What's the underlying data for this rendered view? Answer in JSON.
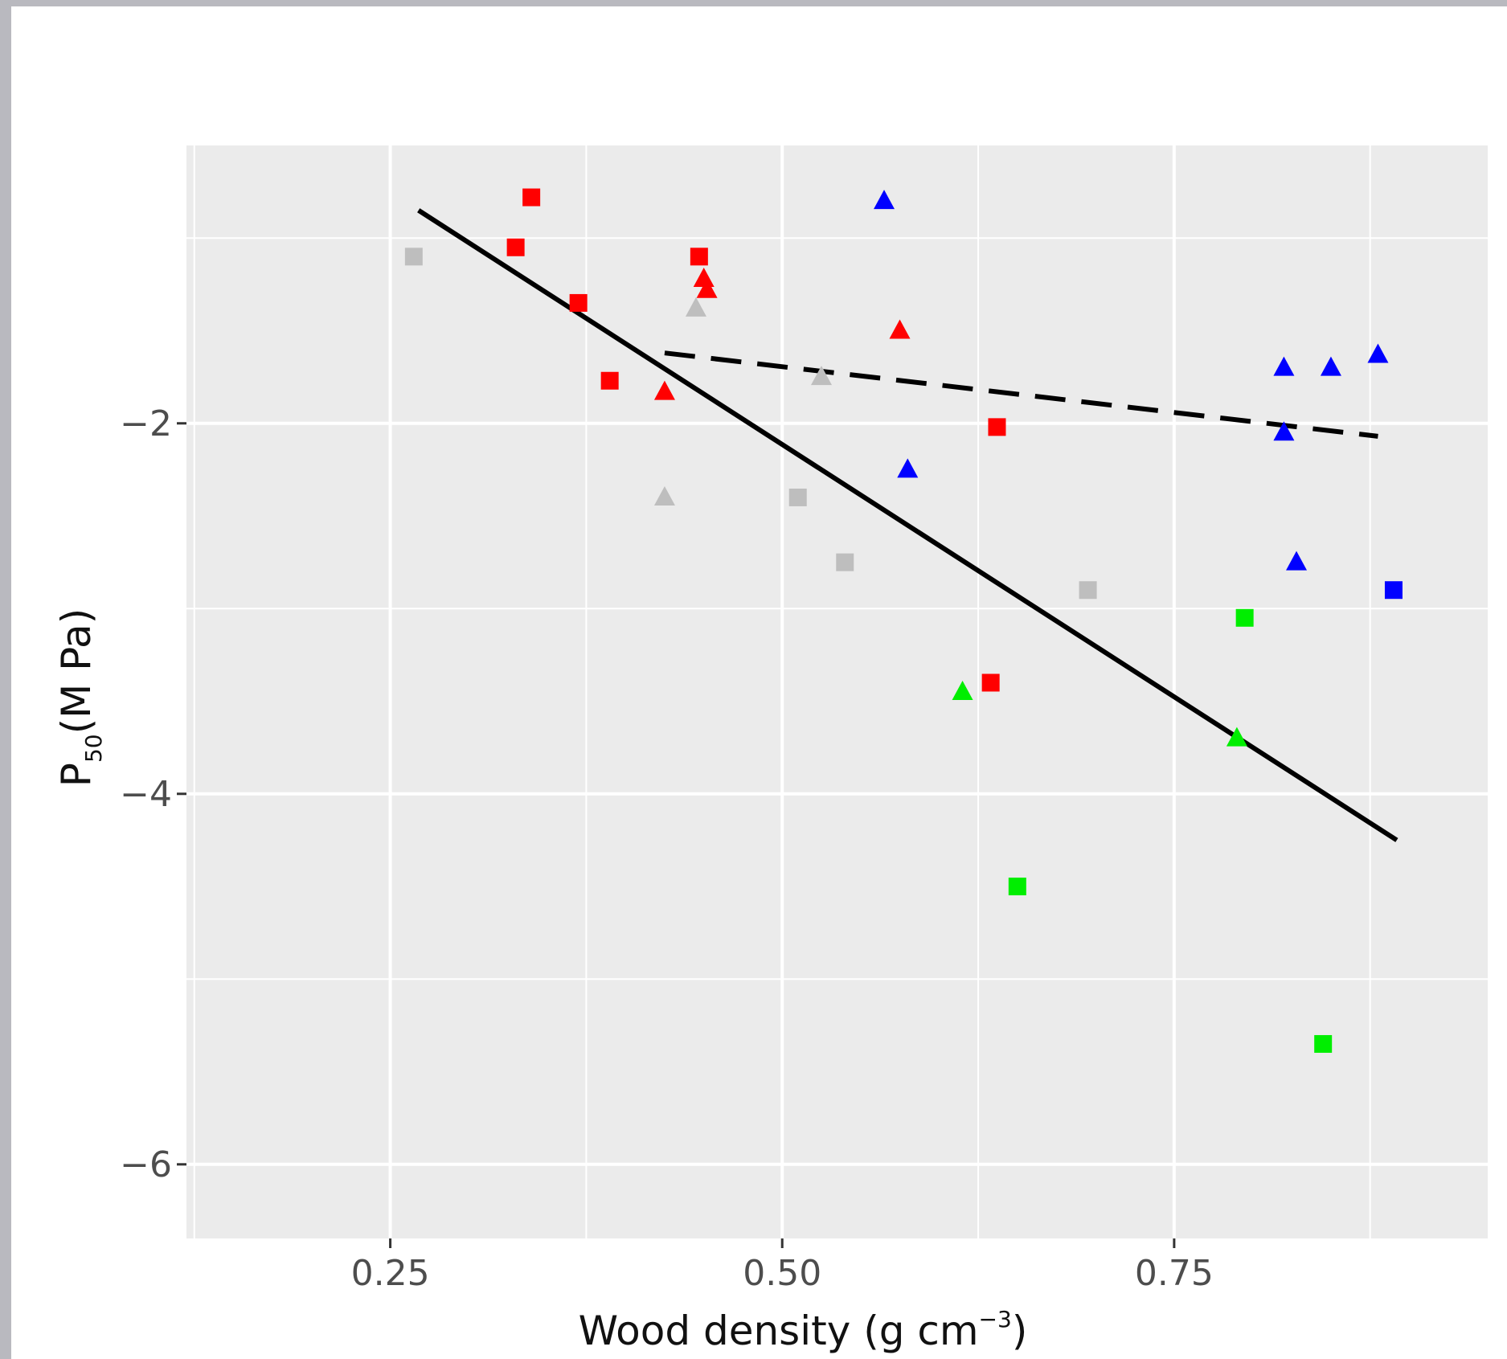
{
  "chart_data": {
    "type": "scatter",
    "title": "",
    "xlabel": {
      "main": "Wood density (g cm",
      "sup": "−3",
      "close": ")"
    },
    "ylabel": {
      "main": "P",
      "sub": "50",
      "rest": "(M Pa)"
    },
    "xlim": [
      0.12,
      0.95
    ],
    "ylim": [
      -6.4,
      -0.5
    ],
    "x_ticks": [
      0.25,
      0.5,
      0.75
    ],
    "x_tick_labels": [
      "0.25",
      "0.50",
      "0.75"
    ],
    "y_ticks": [
      -2,
      -4,
      -6
    ],
    "y_tick_labels": [
      "−2",
      "−4",
      "−6"
    ],
    "grid": true,
    "colors": {
      "red": "#ff0000",
      "blue": "#0000ff",
      "green": "#00ee00",
      "gray": "#bebebe",
      "panel": "#ebebeb",
      "grid": "#ffffff"
    },
    "points": [
      {
        "x": 0.265,
        "y": -1.1,
        "shape": "square",
        "color": "gray"
      },
      {
        "x": 0.34,
        "y": -0.78,
        "shape": "square",
        "color": "red"
      },
      {
        "x": 0.33,
        "y": -1.05,
        "shape": "square",
        "color": "red"
      },
      {
        "x": 0.37,
        "y": -1.35,
        "shape": "square",
        "color": "red"
      },
      {
        "x": 0.39,
        "y": -1.77,
        "shape": "square",
        "color": "red"
      },
      {
        "x": 0.447,
        "y": -1.1,
        "shape": "square",
        "color": "red"
      },
      {
        "x": 0.45,
        "y": -1.22,
        "shape": "triangle",
        "color": "red"
      },
      {
        "x": 0.452,
        "y": -1.28,
        "shape": "triangle",
        "color": "red"
      },
      {
        "x": 0.445,
        "y": -1.38,
        "shape": "triangle",
        "color": "gray"
      },
      {
        "x": 0.425,
        "y": -1.83,
        "shape": "triangle",
        "color": "red"
      },
      {
        "x": 0.425,
        "y": -2.4,
        "shape": "triangle",
        "color": "gray"
      },
      {
        "x": 0.575,
        "y": -1.5,
        "shape": "triangle",
        "color": "red"
      },
      {
        "x": 0.525,
        "y": -1.75,
        "shape": "triangle",
        "color": "gray"
      },
      {
        "x": 0.565,
        "y": -0.8,
        "shape": "triangle",
        "color": "blue"
      },
      {
        "x": 0.58,
        "y": -2.25,
        "shape": "triangle",
        "color": "blue"
      },
      {
        "x": 0.51,
        "y": -2.4,
        "shape": "square",
        "color": "gray"
      },
      {
        "x": 0.54,
        "y": -2.75,
        "shape": "square",
        "color": "gray"
      },
      {
        "x": 0.637,
        "y": -2.02,
        "shape": "square",
        "color": "red"
      },
      {
        "x": 0.633,
        "y": -3.4,
        "shape": "square",
        "color": "red"
      },
      {
        "x": 0.615,
        "y": -3.45,
        "shape": "triangle",
        "color": "green"
      },
      {
        "x": 0.65,
        "y": -4.5,
        "shape": "square",
        "color": "green"
      },
      {
        "x": 0.695,
        "y": -2.9,
        "shape": "square",
        "color": "gray"
      },
      {
        "x": 0.795,
        "y": -3.05,
        "shape": "square",
        "color": "green"
      },
      {
        "x": 0.79,
        "y": -3.7,
        "shape": "triangle",
        "color": "green"
      },
      {
        "x": 0.845,
        "y": -5.35,
        "shape": "square",
        "color": "green"
      },
      {
        "x": 0.82,
        "y": -1.7,
        "shape": "triangle",
        "color": "blue"
      },
      {
        "x": 0.85,
        "y": -1.7,
        "shape": "triangle",
        "color": "blue"
      },
      {
        "x": 0.88,
        "y": -1.63,
        "shape": "triangle",
        "color": "blue"
      },
      {
        "x": 0.82,
        "y": -2.05,
        "shape": "triangle",
        "color": "blue"
      },
      {
        "x": 0.828,
        "y": -2.75,
        "shape": "triangle",
        "color": "blue"
      },
      {
        "x": 0.89,
        "y": -2.9,
        "shape": "square",
        "color": "blue"
      }
    ],
    "lines": [
      {
        "style": "solid",
        "from": [
          0.268,
          -0.85
        ],
        "to": [
          0.892,
          -4.25
        ]
      },
      {
        "style": "dashed",
        "from": [
          0.425,
          -1.62
        ],
        "to": [
          0.88,
          -2.07
        ]
      }
    ]
  }
}
